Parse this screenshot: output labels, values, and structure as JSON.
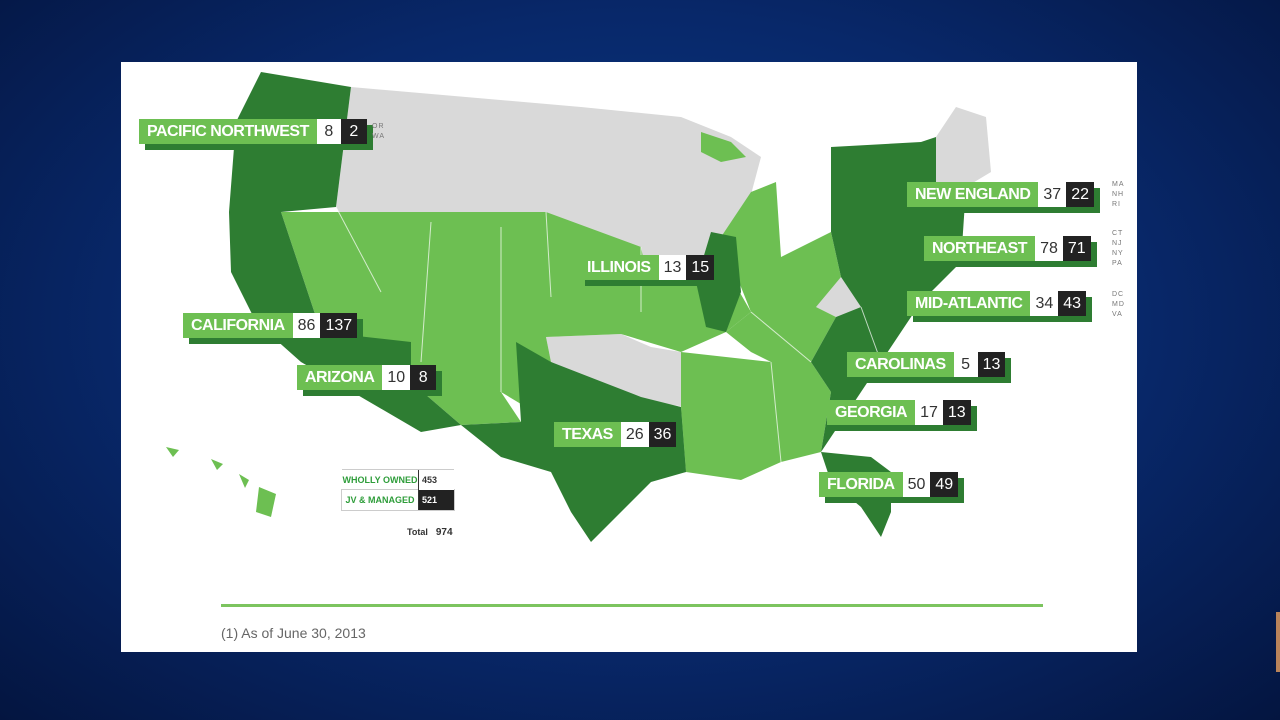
{
  "colors": {
    "background": "#08286a",
    "owned_dark": "#2e7d32",
    "owned_light": "#6dbf52",
    "no_presence": "#d9d9d9",
    "jv_box": "#222222"
  },
  "regions": [
    {
      "id": "pacific-northwest",
      "name": "PACIFIC NORTHWEST",
      "owned": "8",
      "jv": "2",
      "states": [
        "OR",
        "WA"
      ]
    },
    {
      "id": "california",
      "name": "CALIFORNIA",
      "owned": "86",
      "jv": "137",
      "states": []
    },
    {
      "id": "arizona",
      "name": "ARIZONA",
      "owned": "10",
      "jv": "8",
      "states": []
    },
    {
      "id": "texas",
      "name": "TEXAS",
      "owned": "26",
      "jv": "36",
      "states": []
    },
    {
      "id": "illinois",
      "name": "ILLINOIS",
      "owned": "13",
      "jv": "15",
      "states": []
    },
    {
      "id": "new-england",
      "name": "NEW ENGLAND",
      "owned": "37",
      "jv": "22",
      "states": [
        "MA",
        "NH",
        "RI"
      ]
    },
    {
      "id": "northeast",
      "name": "NORTHEAST",
      "owned": "78",
      "jv": "71",
      "states": [
        "CT",
        "NJ",
        "NY",
        "PA"
      ]
    },
    {
      "id": "mid-atlantic",
      "name": "MID-ATLANTIC",
      "owned": "34",
      "jv": "43",
      "states": [
        "DC",
        "MD",
        "VA"
      ]
    },
    {
      "id": "carolinas",
      "name": "CAROLINAS",
      "owned": "5",
      "jv": "13",
      "states": []
    },
    {
      "id": "georgia",
      "name": "GEORGIA",
      "owned": "17",
      "jv": "13",
      "states": []
    },
    {
      "id": "florida",
      "name": "FLORIDA",
      "owned": "50",
      "jv": "49",
      "states": []
    }
  ],
  "legend": {
    "wholly_owned_label": "WHOLLY OWNED",
    "wholly_owned_value": "453",
    "jv_label": "JV & MANAGED",
    "jv_value": "521",
    "total_label": "Total",
    "total_value": "974"
  },
  "footnote": "(1) As of June 30, 2013"
}
